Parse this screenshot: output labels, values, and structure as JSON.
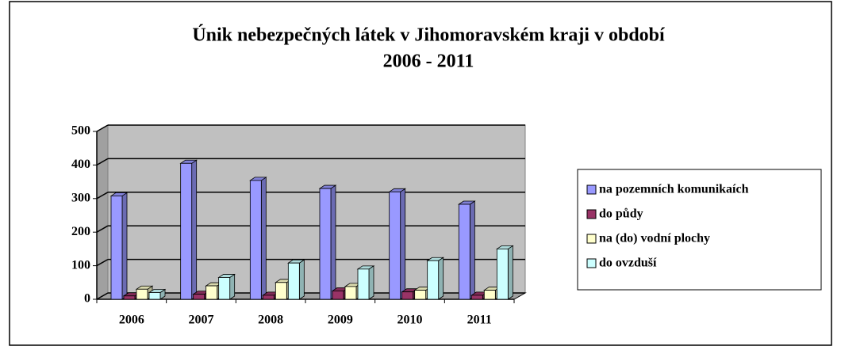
{
  "chart_data": {
    "type": "bar3d",
    "title": [
      "Únik nebezpečných látek v Jihomoravském kraji v období",
      "2006 - 2011"
    ],
    "categories": [
      "2006",
      "2007",
      "2008",
      "2009",
      "2010",
      "2011"
    ],
    "series": [
      {
        "name": "na pozemních komunikaích",
        "color": "#9999ff",
        "values": [
          308,
          405,
          354,
          330,
          320,
          283
        ]
      },
      {
        "name": "do půdy",
        "color": "#993366",
        "values": [
          10,
          15,
          12,
          25,
          22,
          12
        ]
      },
      {
        "name": "na (do) vodní plochy",
        "color": "#ffffcc",
        "values": [
          30,
          40,
          50,
          38,
          27,
          27
        ]
      },
      {
        "name": "do ovzduší",
        "color": "#ccffff",
        "values": [
          20,
          65,
          108,
          90,
          115,
          150
        ]
      }
    ],
    "ylim": [
      0,
      500
    ],
    "yticks": [
      0,
      100,
      200,
      300,
      400,
      500
    ],
    "grid": true,
    "legend": "right"
  }
}
